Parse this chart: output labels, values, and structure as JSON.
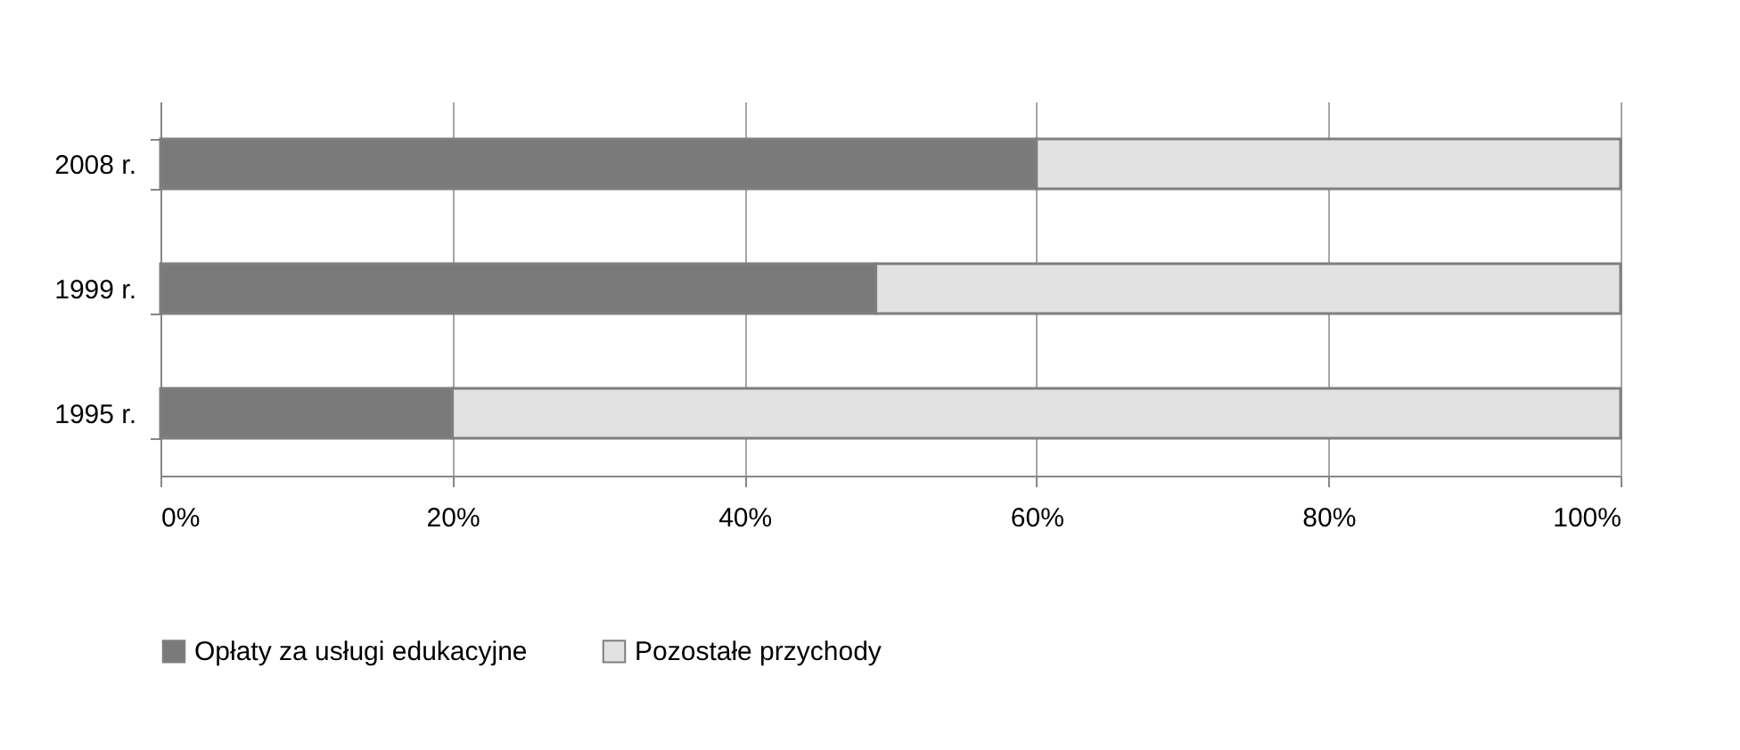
{
  "chart_data": {
    "type": "bar",
    "orientation": "horizontal",
    "stacked": true,
    "categories": [
      "2008 r.",
      "1999 r.",
      "1995 r."
    ],
    "series": [
      {
        "name": "Opłaty za usługi edukacyjne",
        "color": "#7a7a7a",
        "values": [
          60,
          49,
          20
        ]
      },
      {
        "name": "Pozostałe przychody",
        "color": "#e2e2e2",
        "values": [
          40,
          51,
          80
        ]
      }
    ],
    "xlim": [
      0,
      100
    ],
    "xticks": [
      {
        "value": 0,
        "label": "0%"
      },
      {
        "value": 20,
        "label": "20%"
      },
      {
        "value": 40,
        "label": "40%"
      },
      {
        "value": 60,
        "label": "60%"
      },
      {
        "value": 80,
        "label": "80%"
      },
      {
        "value": 100,
        "label": "100%"
      }
    ],
    "grid": "x",
    "legend": "bottom"
  }
}
